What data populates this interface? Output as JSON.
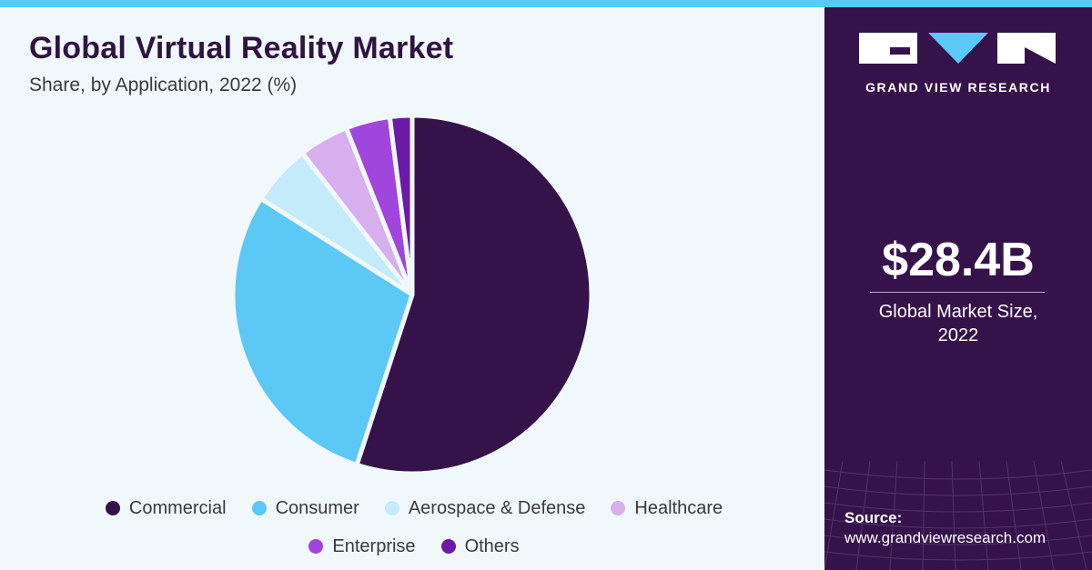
{
  "header": {
    "title": "Global Virtual Reality Market",
    "subtitle": "Share, by Application, 2022 (%)"
  },
  "chart_data": {
    "type": "pie",
    "categories": [
      "Commercial",
      "Consumer",
      "Aerospace & Defense",
      "Healthcare",
      "Enterprise",
      "Others"
    ],
    "values": [
      55.0,
      29.0,
      5.5,
      4.5,
      4.0,
      2.0
    ],
    "colors": [
      "#35124a",
      "#5bc8f5",
      "#c3ebfa",
      "#d7aeee",
      "#a046dc",
      "#6a1aa6"
    ],
    "legend_position": "bottom"
  },
  "sidebar": {
    "brand": "GRAND VIEW RESEARCH",
    "market_value": "$28.4B",
    "market_label_line1": "Global Market Size,",
    "market_label_line2": "2022",
    "source_label": "Source:",
    "source_url": "www.grandviewresearch.com"
  }
}
